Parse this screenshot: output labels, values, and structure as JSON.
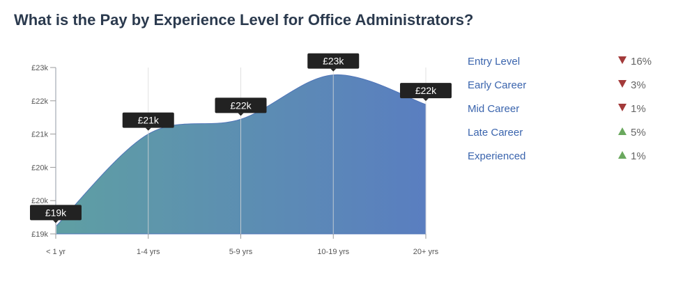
{
  "title": "What is the Pay by Experience Level for Office Administrators?",
  "chart_data": {
    "type": "area",
    "categories": [
      "< 1 yr",
      "1-4 yrs",
      "5-9 yrs",
      "10-19 yrs",
      "20+ yrs"
    ],
    "values": [
      18.8,
      21.3,
      21.7,
      22.9,
      22.1
    ],
    "data_labels": [
      "£19k",
      "£21k",
      "£22k",
      "£23k",
      "£22k"
    ],
    "y_ticks": [
      18.6,
      19.5,
      20.4,
      21.3,
      22.2,
      23.1
    ],
    "y_tick_labels": [
      "£19k",
      "£20k",
      "£20k",
      "£21k",
      "£22k",
      "£23k"
    ],
    "ylim": [
      18.6,
      23.1
    ],
    "unit": "thousands GBP",
    "grid": "vertical",
    "colors": {
      "gradient_start": "#5f9fa3",
      "gradient_end": "#5a7ec0",
      "tooltip": "#222222"
    }
  },
  "legend": [
    {
      "label": "Entry Level",
      "direction": "down",
      "change": "16%"
    },
    {
      "label": "Early Career",
      "direction": "down",
      "change": "3%"
    },
    {
      "label": "Mid Career",
      "direction": "down",
      "change": "1%"
    },
    {
      "label": "Late Career",
      "direction": "up",
      "change": "5%"
    },
    {
      "label": "Experienced",
      "direction": "up",
      "change": "1%"
    }
  ]
}
